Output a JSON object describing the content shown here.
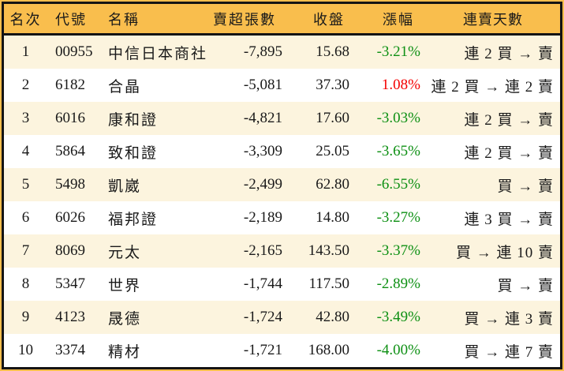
{
  "chart_data": {
    "type": "table",
    "columns": [
      "名次",
      "代號",
      "名稱",
      "賣超張數",
      "收盤",
      "漲幅",
      "連賣天數"
    ],
    "rows": [
      {
        "rank": "1",
        "code": "00955",
        "name": "中信日本商社",
        "net_sell": "-7,895",
        "close": "15.68",
        "change": "-3.21%",
        "change_dir": "down",
        "streak": "連 2 買 → 賣"
      },
      {
        "rank": "2",
        "code": "6182",
        "name": "合晶",
        "net_sell": "-5,081",
        "close": "37.30",
        "change": "1.08%",
        "change_dir": "up",
        "streak": "連 2 買 → 連 2 賣"
      },
      {
        "rank": "3",
        "code": "6016",
        "name": "康和證",
        "net_sell": "-4,821",
        "close": "17.60",
        "change": "-3.03%",
        "change_dir": "down",
        "streak": "連 2 買 → 賣"
      },
      {
        "rank": "4",
        "code": "5864",
        "name": "致和證",
        "net_sell": "-3,309",
        "close": "25.05",
        "change": "-3.65%",
        "change_dir": "down",
        "streak": "連 2 買 → 賣"
      },
      {
        "rank": "5",
        "code": "5498",
        "name": "凱崴",
        "net_sell": "-2,499",
        "close": "62.80",
        "change": "-6.55%",
        "change_dir": "down",
        "streak": "買 → 賣"
      },
      {
        "rank": "6",
        "code": "6026",
        "name": "福邦證",
        "net_sell": "-2,189",
        "close": "14.80",
        "change": "-3.27%",
        "change_dir": "down",
        "streak": "連 3 買 → 賣"
      },
      {
        "rank": "7",
        "code": "8069",
        "name": "元太",
        "net_sell": "-2,165",
        "close": "143.50",
        "change": "-3.37%",
        "change_dir": "down",
        "streak": "買 → 連 10 賣"
      },
      {
        "rank": "8",
        "code": "5347",
        "name": "世界",
        "net_sell": "-1,744",
        "close": "117.50",
        "change": "-2.89%",
        "change_dir": "down",
        "streak": "買 → 賣"
      },
      {
        "rank": "9",
        "code": "4123",
        "name": "晟德",
        "net_sell": "-1,724",
        "close": "42.80",
        "change": "-3.49%",
        "change_dir": "down",
        "streak": "買 → 連 3 賣"
      },
      {
        "rank": "10",
        "code": "3374",
        "name": "精材",
        "net_sell": "-1,721",
        "close": "168.00",
        "change": "-4.00%",
        "change_dir": "down",
        "streak": "買 → 連 7 賣"
      }
    ]
  },
  "colors": {
    "header_bg": "#F9BE4D",
    "row_odd_bg": "#FCF4DE",
    "row_even_bg": "#FFFFFF",
    "border": "#141414",
    "text": "#1A1A1A",
    "change_down_green": "#0E9014",
    "change_up_red": "#F40000"
  }
}
